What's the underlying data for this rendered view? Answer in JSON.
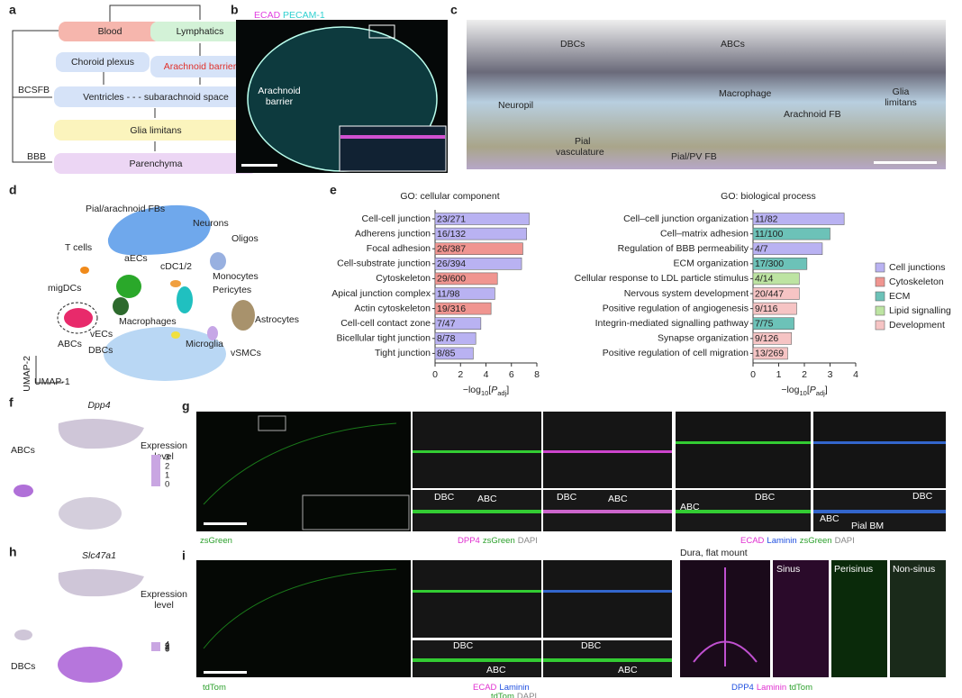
{
  "panel_letters": [
    "a",
    "b",
    "c",
    "d",
    "e",
    "f",
    "g",
    "h",
    "i"
  ],
  "a": {
    "nodes": [
      "Blood",
      "Lymphatics",
      "Choroid plexus",
      "Arachnoid barrier",
      "Ventricles - - - subarachnoid space",
      "Glia limitans",
      "Parenchyma"
    ],
    "side_labels": [
      "BCSFB",
      "BBB"
    ]
  },
  "b": {
    "stains": [
      {
        "text": "ECAD",
        "color": "#e040e0"
      },
      {
        "text": "PECAM-1",
        "color": "#30e0e0"
      }
    ],
    "label": [
      "Arachnoid",
      "barrier"
    ]
  },
  "c": {
    "labels": [
      "DBCs",
      "ABCs",
      "Macrophage",
      "Neuropil",
      "Arachnoid FB",
      "Glia",
      "limitans",
      "Pial",
      "vasculature",
      "Pial/PV FB"
    ]
  },
  "d": {
    "clusters": [
      "Pial/arachnoid FBs",
      "Neurons",
      "Oligos",
      "T cells",
      "aECs",
      "cDC1/2",
      "Monocytes",
      "migDCs",
      "Pericytes",
      "Macrophages",
      "vECs",
      "Astrocytes",
      "ABCs",
      "Microglia",
      "DBCs",
      "vSMCs"
    ],
    "axes": [
      "UMAP-2",
      "UMAP-1"
    ]
  },
  "e_legend": {
    "names": [
      "Cell junctions",
      "Cytoskeleton",
      "ECM",
      "Lipid signalling",
      "Development"
    ],
    "colors": [
      "#b9b2f2",
      "#f09590",
      "#6cc2b8",
      "#bde4a2",
      "#f6c4c4"
    ]
  },
  "chart_data": [
    {
      "type": "hbar",
      "title": "GO: cellular component",
      "categories": [
        "Cell-cell junction",
        "Adherens junction",
        "Focal adhesion",
        "Cell-substrate junction",
        "Cytoskeleton",
        "Apical junction complex",
        "Actin cytoskeleton",
        "Cell-cell contact zone",
        "Bicellular tight junction",
        "Tight junction"
      ],
      "values": [
        7.4,
        7.2,
        6.9,
        6.8,
        4.9,
        4.7,
        4.4,
        3.6,
        3.2,
        3.0
      ],
      "bar_labels": [
        "23/271",
        "16/132",
        "26/387",
        "26/394",
        "29/600",
        "11/98",
        "19/316",
        "7/47",
        "8/78",
        "8/85"
      ],
      "colors": [
        "#b9b2f2",
        "#b9b2f2",
        "#f09590",
        "#b9b2f2",
        "#f09590",
        "#b9b2f2",
        "#f09590",
        "#b9b2f2",
        "#b9b2f2",
        "#b9b2f2"
      ],
      "xlim": [
        0,
        8
      ],
      "xticks": [
        0,
        2,
        4,
        6,
        8
      ],
      "xlabel": [
        "−log",
        "10",
        "[",
        "P",
        "adj",
        "]"
      ]
    },
    {
      "type": "hbar",
      "title": "GO: biological process",
      "categories": [
        "Cell–cell junction organization",
        "Cell–matrix adhesion",
        "Regulation of BBB permeability",
        "ECM organization",
        "Cellular response to LDL particle stimulus",
        "Nervous system development",
        "Positive regulation of angiogenesis",
        "Integrin-mediated signalling pathway",
        "Synapse organization",
        "Positive regulation of cell migration"
      ],
      "values": [
        3.55,
        3.0,
        2.7,
        2.1,
        1.8,
        1.8,
        1.7,
        1.6,
        1.5,
        1.35
      ],
      "bar_labels": [
        "11/82",
        "11/100",
        "4/7",
        "17/300",
        "4/14",
        "20/447",
        "9/116",
        "7/75",
        "9/126",
        "13/269"
      ],
      "colors": [
        "#b9b2f2",
        "#6cc2b8",
        "#b9b2f2",
        "#6cc2b8",
        "#bde4a2",
        "#f6c4c4",
        "#f6c4c4",
        "#6cc2b8",
        "#f6c4c4",
        "#f6c4c4"
      ],
      "xlim": [
        0,
        4
      ],
      "xticks": [
        0,
        1,
        2,
        3,
        4
      ],
      "xlabel": [
        "−log",
        "10",
        "[",
        "P",
        "adj",
        "]"
      ]
    }
  ],
  "f": {
    "gene": "Dpp4",
    "legend_title": [
      "Expression",
      "level"
    ],
    "ticks": [
      3,
      2,
      1,
      0
    ],
    "label": "ABCs"
  },
  "h": {
    "gene": "Slc47a1",
    "legend_title": [
      "Expression",
      "level"
    ],
    "ticks": [
      4,
      3,
      2,
      1,
      0
    ],
    "label": "DBCs"
  },
  "g": {
    "overlay": [
      "DBC",
      "ABC",
      "DBC",
      "ABC",
      "DBC",
      "ABC",
      "DBC",
      "ABC",
      "Pial BM"
    ],
    "captions": [
      [
        {
          "text": "zsGreen",
          "color": "#2ca02c"
        }
      ],
      [
        {
          "text": "DPP4",
          "color": "#e030d0"
        },
        {
          "text": "zsGreen",
          "color": "#2ca02c"
        },
        {
          "text": "DAPI",
          "color": "#888"
        }
      ],
      [
        {
          "text": "ECAD",
          "color": "#e030d0"
        },
        {
          "text": "Laminin",
          "color": "#2050e0"
        },
        {
          "text": "zsGreen",
          "color": "#2ca02c"
        },
        {
          "text": "DAPI",
          "color": "#888"
        }
      ]
    ]
  },
  "i": {
    "overlay": [
      "DBC",
      "ABC",
      "DBC",
      "ABC"
    ],
    "header": "Dura, flat mount",
    "regions": [
      "Sinus",
      "Perisinus",
      "Non-sinus"
    ],
    "captions": [
      [
        {
          "text": "tdTom",
          "color": "#2ca02c"
        }
      ],
      [
        {
          "text": "ECAD",
          "color": "#e030d0"
        },
        {
          "text": "Laminin",
          "color": "#2050e0"
        }
      ],
      [
        {
          "text": "tdTom",
          "color": "#2ca02c"
        },
        {
          "text": "DAPI",
          "color": "#888"
        }
      ],
      [
        {
          "text": "DPP4",
          "color": "#2050e0"
        },
        {
          "text": "Laminin",
          "color": "#e030d0"
        },
        {
          "text": "tdTom",
          "color": "#2ca02c"
        }
      ]
    ]
  }
}
